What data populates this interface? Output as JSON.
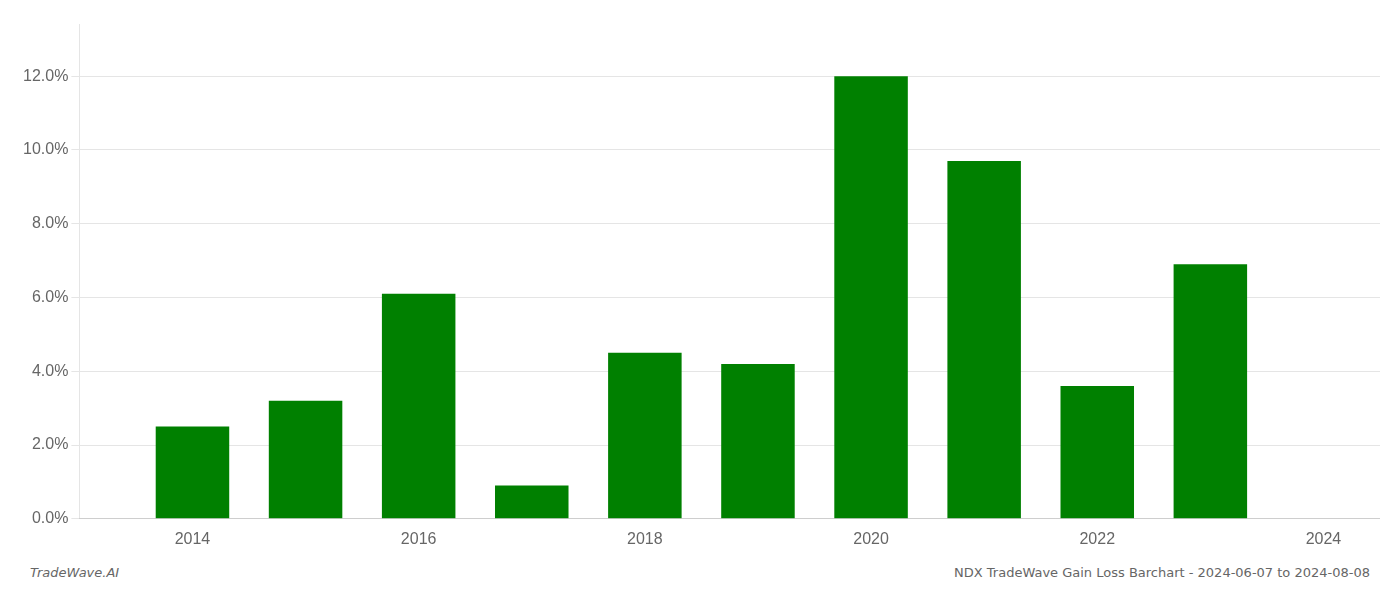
{
  "chart_data": {
    "type": "bar",
    "x": [
      2014,
      2015,
      2016,
      2017,
      2018,
      2019,
      2020,
      2021,
      2022,
      2023
    ],
    "values": [
      0.025,
      0.032,
      0.061,
      0.009,
      0.045,
      0.042,
      0.12,
      0.097,
      0.036,
      0.069
    ],
    "color": "#008000",
    "xlim": [
      2013.0,
      2024.5
    ],
    "xticks": [
      2014,
      2016,
      2018,
      2020,
      2022,
      2024
    ],
    "ylim": [
      0,
      0.134
    ],
    "yticks": [
      {
        "value": 0.0,
        "label": "0.0%"
      },
      {
        "value": 0.02,
        "label": "2.0%"
      },
      {
        "value": 0.04,
        "label": "4.0%"
      },
      {
        "value": 0.06,
        "label": "6.0%"
      },
      {
        "value": 0.08,
        "label": "8.0%"
      },
      {
        "value": 0.1,
        "label": "10.0%"
      },
      {
        "value": 0.12,
        "label": "12.0%"
      }
    ],
    "grid": "y",
    "annotations": [
      "TradeWave.AI",
      "NDX TradeWave Gain Loss Barchart - 2024-06-07 to 2024-08-08"
    ]
  }
}
